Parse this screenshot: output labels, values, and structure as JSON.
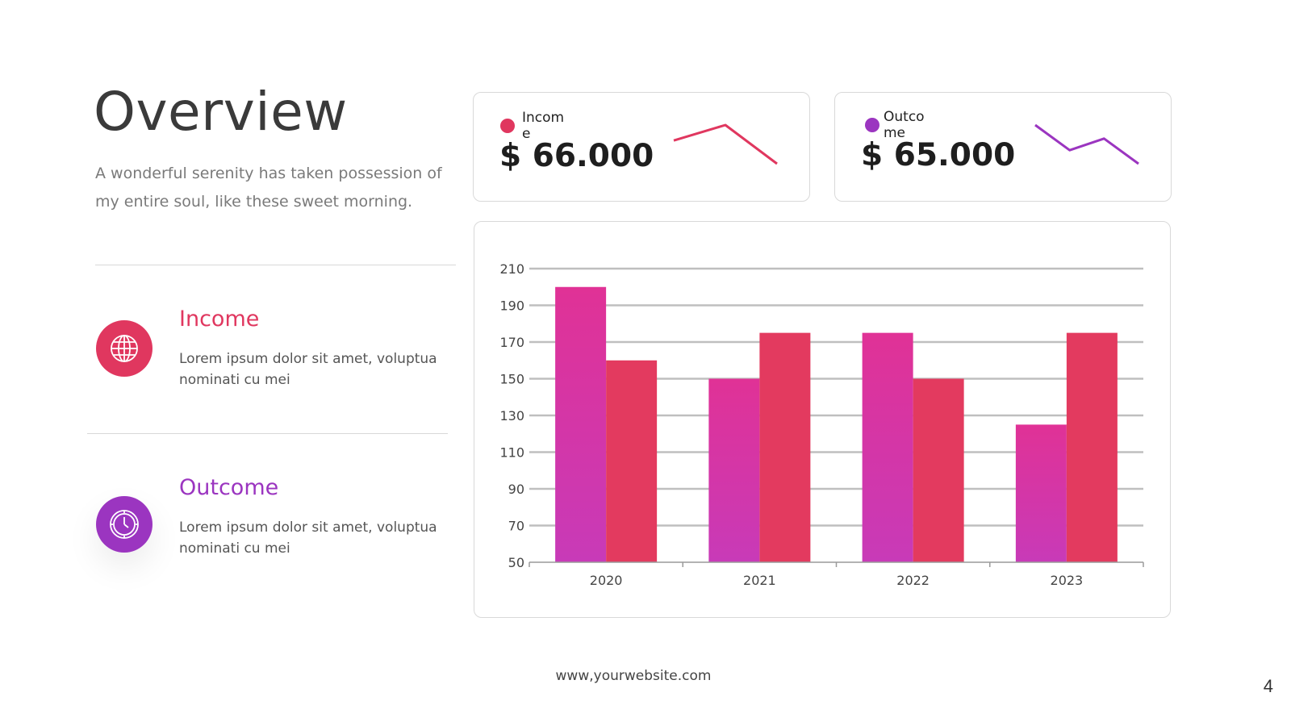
{
  "slide": {
    "title": "Overview",
    "subtitle": "A wonderful serenity has taken possession of my entire soul, like these sweet morning.",
    "footer": "www,yourwebsite.com",
    "page_number": "4"
  },
  "items": [
    {
      "heading": "Income",
      "text": "Lorem ipsum dolor sit amet, voluptua nominati cu mei",
      "color": "#e0375f",
      "icon": "globe-icon"
    },
    {
      "heading": "Outcome",
      "text": "Lorem ipsum dolor sit amet, voluptua nominati cu mei",
      "color": "#9b35c0",
      "icon": "clock-icon"
    }
  ],
  "kpis": [
    {
      "label": "Income",
      "value": "$ 66.000",
      "color": "#e0375f",
      "trend": [
        0.6,
        1.0,
        0.0
      ]
    },
    {
      "label": "Outcome",
      "value": "$ 65.000",
      "color": "#9b35c0",
      "trend": [
        1.0,
        0.35,
        0.65,
        0.0
      ]
    }
  ],
  "colors": {
    "series_a_top": "#e03296",
    "series_a_bottom": "#c83ab8",
    "series_b": "#e33a5f",
    "grid": "#bfbfbf"
  },
  "chart_data": {
    "type": "bar",
    "categories": [
      "2020",
      "2021",
      "2022",
      "2023"
    ],
    "series": [
      {
        "values": [
          200,
          150,
          175,
          125
        ]
      },
      {
        "values": [
          160,
          175,
          150,
          175
        ]
      }
    ],
    "ylim": [
      50,
      210
    ],
    "yticks": [
      210,
      190,
      170,
      150,
      130,
      110,
      90,
      70,
      50
    ],
    "grid": true,
    "legend": "none"
  }
}
